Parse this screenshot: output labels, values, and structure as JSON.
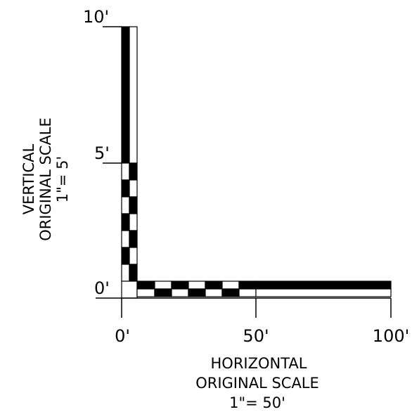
{
  "vertical": {
    "tick_labels": [
      "10'",
      "5'",
      "0'"
    ],
    "caption_lines": [
      "VERTICAL",
      "ORIGINAL SCALE",
      "1\"= 5'"
    ]
  },
  "horizontal": {
    "tick_labels": [
      "0'",
      "50'",
      "100'"
    ],
    "caption_lines": [
      "HORIZONTAL",
      "ORIGINAL SCALE",
      "1\"= 50'"
    ]
  }
}
